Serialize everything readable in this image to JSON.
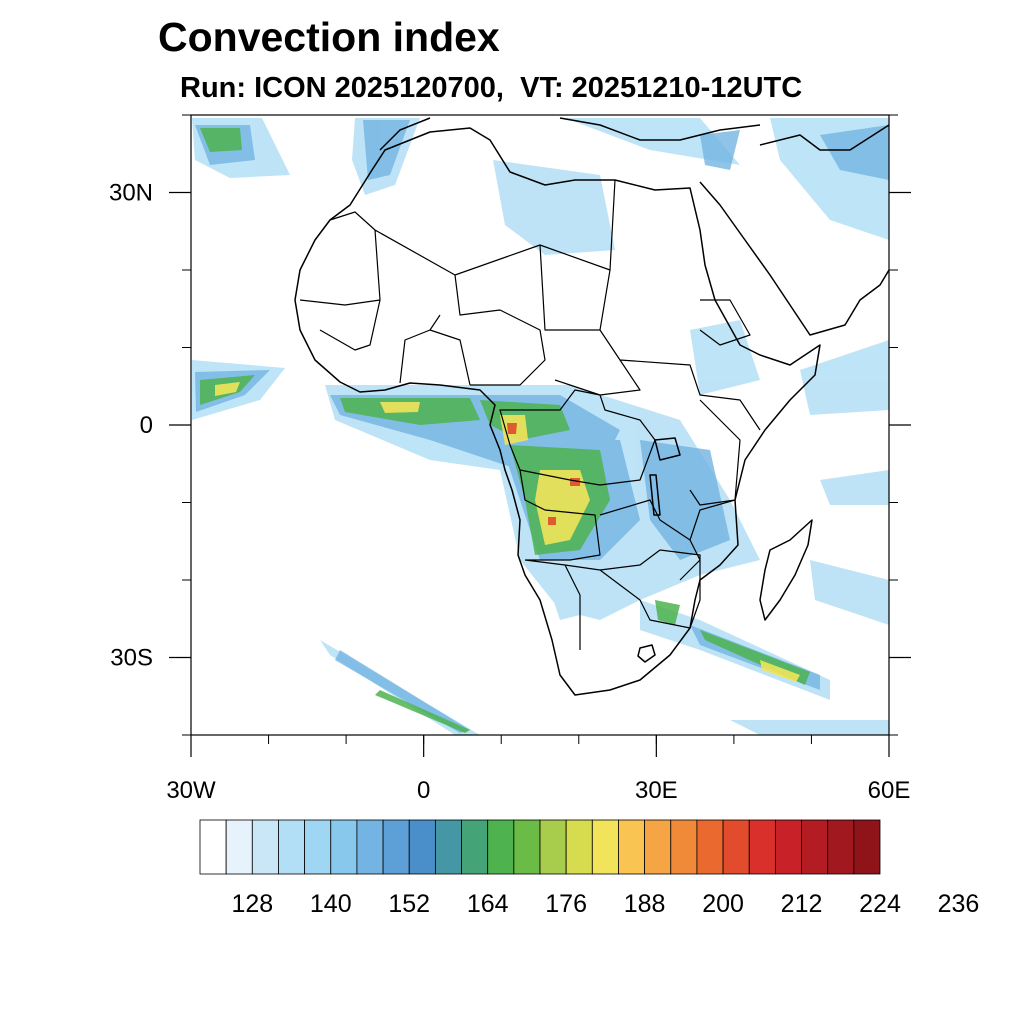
{
  "title": "Convection index",
  "subtitle": "Run: ICON 2025120700,  VT: 20251210-12UTC",
  "map": {
    "lon_range": [
      -30,
      60
    ],
    "lat_range": [
      -40,
      40
    ],
    "lon_ticks": [
      {
        "value": -30,
        "label": "30W"
      },
      {
        "value": 0,
        "label": "0"
      },
      {
        "value": 30,
        "label": "30E"
      },
      {
        "value": 60,
        "label": "60E"
      }
    ],
    "lat_ticks": [
      {
        "value": 30,
        "label": "30N"
      },
      {
        "value": 0,
        "label": "0"
      },
      {
        "value": -30,
        "label": "30S"
      }
    ],
    "minor_lon_step": 10,
    "minor_lat_step": 10
  },
  "colorbar": {
    "colors": [
      "#ffffff",
      "#e6f3fc",
      "#c9e7f7",
      "#b3dff6",
      "#9fd6f3",
      "#88c8ec",
      "#74b4e2",
      "#5d9fd7",
      "#4a8fc9",
      "#4597a6",
      "#44a477",
      "#4eb34f",
      "#6bbb47",
      "#a8cc4b",
      "#d7db4e",
      "#f1e45a",
      "#fac452",
      "#f6a544",
      "#f08a38",
      "#e9692f",
      "#e24b2b",
      "#d9302b",
      "#c92128",
      "#b41c24",
      "#a1181f",
      "#8e141a"
    ],
    "labels": [
      "128",
      "140",
      "152",
      "164",
      "176",
      "188",
      "200",
      "212",
      "224",
      "236"
    ]
  }
}
